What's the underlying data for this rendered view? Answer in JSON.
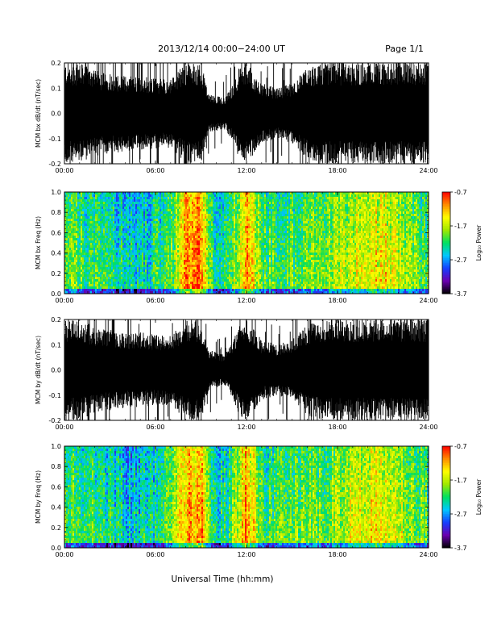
{
  "header": {
    "date_range": "2013/12/14   00:00−24:00 UT",
    "page": "Page 1/1"
  },
  "x_axis": {
    "label": "Universal Time (hh:mm)",
    "ticks": [
      "00:00",
      "06:00",
      "12:00",
      "18:00",
      "24:00"
    ],
    "range_hours": [
      0,
      24
    ]
  },
  "colorbar": {
    "label": "Log₁₀ Power",
    "ticks": [
      "-0.7",
      "-1.7",
      "-2.7",
      "-3.7"
    ],
    "range": [
      -3.7,
      -0.7
    ],
    "colors": [
      "#000000",
      "#6a00b0",
      "#1540ff",
      "#00c8ff",
      "#00e060",
      "#a0e800",
      "#ffff00",
      "#ff8c00",
      "#ff0000"
    ]
  },
  "chart_data": [
    {
      "type": "line",
      "ylabel": "MCM bx dB/dt (nT/sec)",
      "ylim": [
        -0.2,
        0.2
      ],
      "yticks": [
        "0.2",
        "0.1",
        "0.0",
        "-0.1",
        "-0.2"
      ],
      "xlim": [
        0,
        24
      ],
      "series_color": "#000000",
      "envelope_hours": [
        0,
        1,
        2,
        3,
        4,
        5,
        6,
        7,
        8,
        8.5,
        9,
        9.5,
        10,
        10.5,
        11,
        11.5,
        12,
        13,
        14,
        15,
        16,
        17,
        18,
        19,
        20,
        21,
        22,
        23,
        24
      ],
      "envelope_amplitude": [
        0.2,
        0.2,
        0.17,
        0.16,
        0.15,
        0.15,
        0.14,
        0.14,
        0.2,
        0.2,
        0.2,
        0.08,
        0.07,
        0.06,
        0.1,
        0.18,
        0.2,
        0.12,
        0.1,
        0.12,
        0.18,
        0.2,
        0.2,
        0.2,
        0.2,
        0.2,
        0.2,
        0.2,
        0.2
      ]
    },
    {
      "type": "heatmap",
      "ylabel": "MCM bx Freq (Hz)",
      "ylim": [
        0.0,
        1.0
      ],
      "yticks": [
        "1.0",
        "0.8",
        "0.6",
        "0.4",
        "0.2",
        "0.0"
      ],
      "xlim": [
        0,
        24
      ],
      "zlim": [
        -3.7,
        -0.7
      ],
      "hours": [
        0,
        1,
        2,
        3,
        4,
        5,
        6,
        7,
        8,
        9,
        10,
        11,
        12,
        13,
        14,
        15,
        16,
        17,
        18,
        19,
        20,
        21,
        22,
        23,
        24
      ],
      "mean_log_power": [
        -1.9,
        -2.0,
        -2.1,
        -2.2,
        -2.3,
        -2.4,
        -2.2,
        -2.0,
        -1.1,
        -1.0,
        -2.4,
        -2.0,
        -1.0,
        -2.0,
        -2.0,
        -2.0,
        -1.9,
        -1.9,
        -1.7,
        -1.5,
        -1.4,
        -1.4,
        -1.6,
        -1.9,
        -2.0
      ]
    },
    {
      "type": "line",
      "ylabel": "MCM by dB/dt (nT/sec)",
      "ylim": [
        -0.2,
        0.2
      ],
      "yticks": [
        "0.2",
        "0.1",
        "0.0",
        "-0.1",
        "-0.2"
      ],
      "xlim": [
        0,
        24
      ],
      "series_color": "#000000",
      "envelope_hours": [
        0,
        1,
        2,
        3,
        4,
        5,
        6,
        7,
        8,
        8.5,
        9,
        9.5,
        10,
        10.5,
        11,
        11.5,
        12,
        13,
        14,
        15,
        16,
        17,
        18,
        19,
        20,
        21,
        22,
        23,
        24
      ],
      "envelope_amplitude": [
        0.2,
        0.2,
        0.17,
        0.16,
        0.15,
        0.15,
        0.14,
        0.14,
        0.2,
        0.2,
        0.2,
        0.08,
        0.07,
        0.06,
        0.1,
        0.18,
        0.2,
        0.12,
        0.1,
        0.12,
        0.18,
        0.2,
        0.2,
        0.2,
        0.2,
        0.2,
        0.2,
        0.2,
        0.2
      ]
    },
    {
      "type": "heatmap",
      "ylabel": "MCM by Freq (Hz)",
      "ylim": [
        0.0,
        1.0
      ],
      "yticks": [
        "1.0",
        "0.8",
        "0.6",
        "0.4",
        "0.2",
        "0.0"
      ],
      "xlim": [
        0,
        24
      ],
      "zlim": [
        -3.7,
        -0.7
      ],
      "hours": [
        0,
        1,
        2,
        3,
        4,
        5,
        6,
        7,
        8,
        9,
        10,
        11,
        12,
        13,
        14,
        15,
        16,
        17,
        18,
        19,
        20,
        21,
        22,
        23,
        24
      ],
      "mean_log_power": [
        -1.9,
        -2.0,
        -2.1,
        -2.2,
        -2.4,
        -2.4,
        -2.2,
        -2.0,
        -1.1,
        -1.0,
        -2.4,
        -2.0,
        -1.0,
        -2.0,
        -2.0,
        -2.0,
        -1.9,
        -1.9,
        -1.7,
        -1.5,
        -1.4,
        -1.4,
        -1.6,
        -1.9,
        -2.0
      ]
    }
  ]
}
